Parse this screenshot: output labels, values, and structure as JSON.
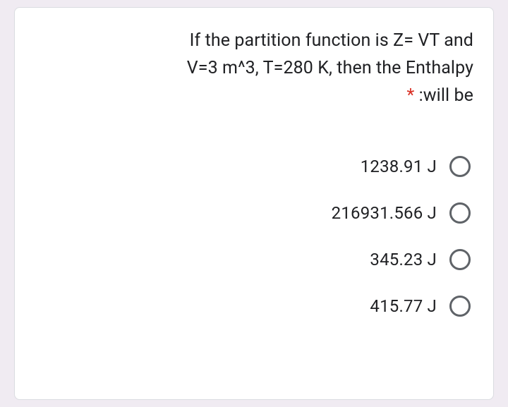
{
  "card": {
    "background_color": "#ffffff",
    "border_color": "#dadce0",
    "border_radius": 8
  },
  "page": {
    "background_color": "#f0ebf2"
  },
  "question": {
    "line1": "If the partition function is Z= VT and",
    "line2": "V=3 m^3, T=280 K, then the Enthalpy",
    "line3_suffix": ":will be",
    "required_marker": "*",
    "text_color": "#202124",
    "required_color": "#d93025",
    "font_size": 25
  },
  "options": [
    {
      "label": "1238.91 J"
    },
    {
      "label": "216931.566 J"
    },
    {
      "label": "345.23 J"
    },
    {
      "label": "415.77 J"
    }
  ],
  "radio_style": {
    "border_color": "#5f6368",
    "size": 30,
    "border_width": 3
  },
  "option_style": {
    "font_size": 24,
    "text_color": "#202124"
  }
}
